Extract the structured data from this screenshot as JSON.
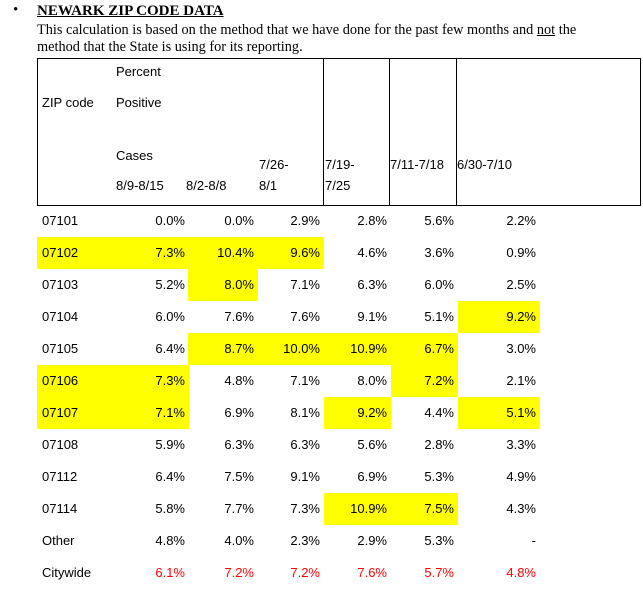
{
  "header": {
    "bullet": "•",
    "title": "NEWARK ZIP CODE DATA",
    "note_part1": "This calculation is based on the method that we have done for the past few months and ",
    "note_emph": "not",
    "note_part2": " the",
    "note_line2": "method that the State is using for its reporting."
  },
  "table": {
    "headers": {
      "percent": "Percent",
      "zip_code": "ZIP code",
      "positive": "Positive",
      "cases": "Cases",
      "col1": "8/9-8/15",
      "col2": "8/2-8/8",
      "col3_top": "7/26-",
      "col3_bottom": "8/1",
      "col4_top": "7/19-",
      "col4_bottom": "7/25",
      "col5": "7/11-7/18",
      "col6": "6/30-7/10"
    },
    "highlight_color": "#ffff00",
    "citywide_color": "#ff0000",
    "rows": [
      {
        "zip": "07101",
        "values": [
          "0.0%",
          "0.0%",
          "2.9%",
          "2.8%",
          "5.6%",
          "2.2%"
        ],
        "zip_hl": false,
        "hl": [
          false,
          false,
          false,
          false,
          false,
          false
        ],
        "red": false
      },
      {
        "zip": "07102",
        "values": [
          "7.3%",
          "10.4%",
          "9.6%",
          "4.6%",
          "3.6%",
          "0.9%"
        ],
        "zip_hl": true,
        "hl": [
          true,
          true,
          true,
          false,
          false,
          false
        ],
        "red": false
      },
      {
        "zip": "07103",
        "values": [
          "5.2%",
          "8.0%",
          "7.1%",
          "6.3%",
          "6.0%",
          "2.5%"
        ],
        "zip_hl": false,
        "hl": [
          false,
          true,
          false,
          false,
          false,
          false
        ],
        "red": false
      },
      {
        "zip": "07104",
        "values": [
          "6.0%",
          "7.6%",
          "7.6%",
          "9.1%",
          "5.1%",
          "9.2%"
        ],
        "zip_hl": false,
        "hl": [
          false,
          false,
          false,
          false,
          false,
          true
        ],
        "red": false
      },
      {
        "zip": "07105",
        "values": [
          "6.4%",
          "8.7%",
          "10.0%",
          "10.9%",
          "6.7%",
          "3.0%"
        ],
        "zip_hl": false,
        "hl": [
          false,
          true,
          true,
          true,
          true,
          false
        ],
        "red": false
      },
      {
        "zip": "07106",
        "values": [
          "7.3%",
          "4.8%",
          "7.1%",
          "8.0%",
          "7.2%",
          "2.1%"
        ],
        "zip_hl": true,
        "hl": [
          true,
          false,
          false,
          false,
          true,
          false
        ],
        "red": false
      },
      {
        "zip": "07107",
        "values": [
          "7.1%",
          "6.9%",
          "8.1%",
          "9.2%",
          "4.4%",
          "5.1%"
        ],
        "zip_hl": true,
        "hl": [
          true,
          false,
          false,
          true,
          false,
          true
        ],
        "red": false
      },
      {
        "zip": "07108",
        "values": [
          "5.9%",
          "6.3%",
          "6.3%",
          "5.6%",
          "2.8%",
          "3.3%"
        ],
        "zip_hl": false,
        "hl": [
          false,
          false,
          false,
          false,
          false,
          false
        ],
        "red": false
      },
      {
        "zip": "07112",
        "values": [
          "6.4%",
          "7.5%",
          "9.1%",
          "6.9%",
          "5.3%",
          "4.9%"
        ],
        "zip_hl": false,
        "hl": [
          false,
          false,
          false,
          false,
          false,
          false
        ],
        "red": false
      },
      {
        "zip": "07114",
        "values": [
          "5.8%",
          "7.7%",
          "7.3%",
          "10.9%",
          "7.5%",
          "4.3%"
        ],
        "zip_hl": false,
        "hl": [
          false,
          false,
          false,
          true,
          true,
          false
        ],
        "red": false
      },
      {
        "zip": "Other",
        "values": [
          "4.8%",
          "4.0%",
          "2.3%",
          "2.9%",
          "5.3%",
          "-"
        ],
        "zip_hl": false,
        "hl": [
          false,
          false,
          false,
          false,
          false,
          false
        ],
        "red": false
      },
      {
        "zip": "Citywide",
        "values": [
          "6.1%",
          "7.2%",
          "7.2%",
          "7.6%",
          "5.7%",
          "4.8%"
        ],
        "zip_hl": false,
        "hl": [
          false,
          false,
          false,
          false,
          false,
          false
        ],
        "red": true
      }
    ]
  }
}
